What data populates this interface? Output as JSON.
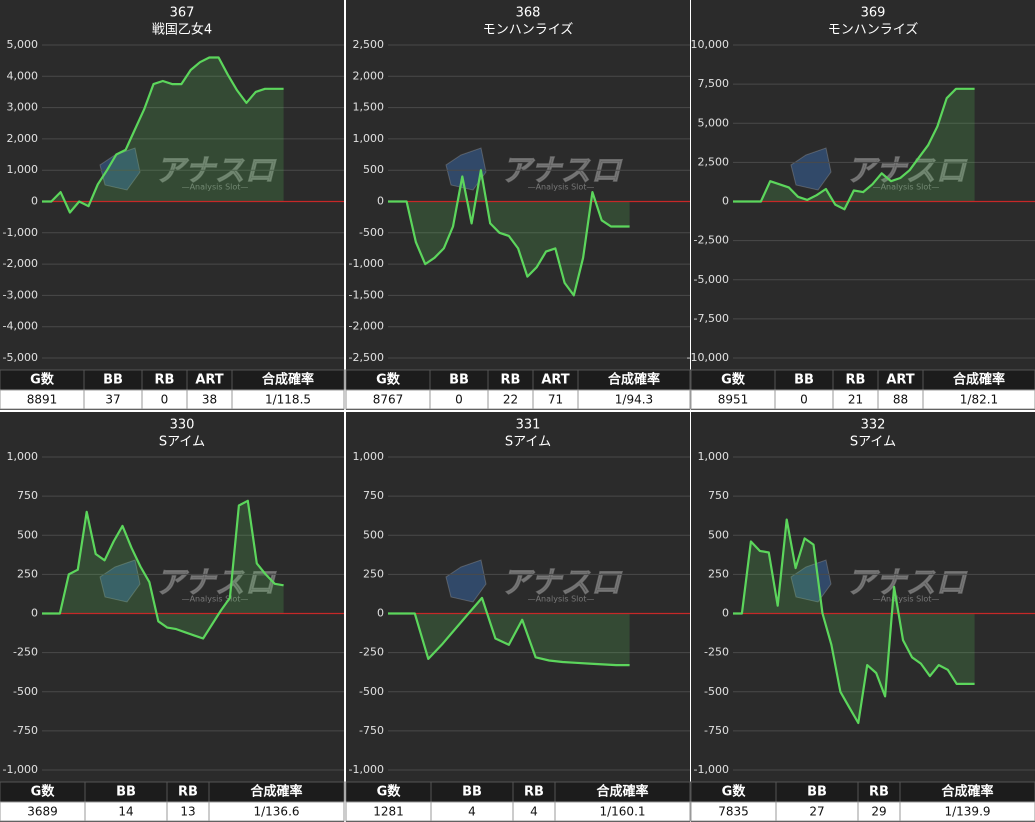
{
  "watermark": {
    "title": "アナスロ",
    "subtitle": "—Analysis Slot—"
  },
  "chart_data": [
    {
      "type": "line",
      "title": "367",
      "subtitle": "戦国乙女4",
      "color": "#5cd65c",
      "fill": true,
      "zero_line": "#c62828",
      "ylim": [
        -5000,
        5000
      ],
      "yticks": [
        {
          "value": -5000,
          "label": "-5,000"
        },
        {
          "value": -4000,
          "label": "-4,000"
        },
        {
          "value": -3000,
          "label": "-3,000"
        },
        {
          "value": -2000,
          "label": "-2,000"
        },
        {
          "value": -1000,
          "label": "-1,000"
        },
        0,
        {
          "value": 1000,
          "label": "1,000"
        },
        {
          "value": 2000,
          "label": "2,000"
        },
        {
          "value": 3000,
          "label": "3,000"
        },
        {
          "value": 4000,
          "label": "4,000"
        },
        {
          "value": 5000,
          "label": "5,000"
        }
      ],
      "values": [
        0,
        0,
        300,
        -350,
        0,
        -150,
        550,
        1000,
        1500,
        1650,
        2300,
        2950,
        3750,
        3850,
        3750,
        3750,
        4200,
        4450,
        4600,
        4600,
        4050,
        3550,
        3150,
        3500,
        3600,
        3600,
        3600
      ]
    },
    {
      "type": "line",
      "title": "368",
      "subtitle": "モンハンライズ",
      "color": "#5cd65c",
      "fill": true,
      "zero_line": "#c62828",
      "ylim": [
        -2500,
        2500
      ],
      "yticks": [
        {
          "value": -2500,
          "label": "-2,500"
        },
        {
          "value": -2000,
          "label": "-2,000"
        },
        {
          "value": -1500,
          "label": "-1,500"
        },
        {
          "value": -1000,
          "label": "-1,000"
        },
        -500,
        0,
        500,
        {
          "value": 1000,
          "label": "1,000"
        },
        {
          "value": 1500,
          "label": "1,500"
        },
        {
          "value": 2000,
          "label": "2,000"
        },
        {
          "value": 2500,
          "label": "2,500"
        }
      ],
      "values": [
        0,
        0,
        0,
        -650,
        -1000,
        -900,
        -750,
        -400,
        400,
        -350,
        500,
        -350,
        -500,
        -550,
        -750,
        -1200,
        -1050,
        -800,
        -750,
        -1300,
        -1500,
        -900,
        150,
        -300,
        -400,
        -400,
        -400
      ]
    },
    {
      "type": "line",
      "title": "369",
      "subtitle": "モンハンライズ",
      "color": "#5cd65c",
      "fill": true,
      "zero_line": "#c62828",
      "ylim": [
        -10000,
        10000
      ],
      "yticks": [
        {
          "value": -10000,
          "label": "-10,000"
        },
        {
          "value": -7500,
          "label": "-7,500"
        },
        {
          "value": -5000,
          "label": "-5,000"
        },
        {
          "value": -2500,
          "label": "-2,500"
        },
        0,
        {
          "value": 2500,
          "label": "2,500"
        },
        {
          "value": 5000,
          "label": "5,000"
        },
        {
          "value": 7500,
          "label": "7,500"
        },
        {
          "value": 10000,
          "label": "10,000"
        }
      ],
      "values": [
        0,
        0,
        0,
        0,
        1300,
        1100,
        900,
        300,
        100,
        400,
        800,
        -200,
        -500,
        700,
        600,
        1100,
        1800,
        1300,
        1500,
        2000,
        2800,
        3600,
        4800,
        6600,
        7200,
        7200,
        7200
      ]
    },
    {
      "type": "line",
      "title": "330",
      "subtitle": "Sアイム",
      "color": "#5cd65c",
      "fill": true,
      "zero_line": "#c62828",
      "ylim": [
        -1000,
        1000
      ],
      "yticks": [
        {
          "value": -1000,
          "label": "-1,000"
        },
        -750,
        -500,
        -250,
        0,
        250,
        500,
        750,
        {
          "value": 1000,
          "label": "1,000"
        }
      ],
      "values": [
        0,
        0,
        0,
        250,
        280,
        650,
        380,
        340,
        460,
        560,
        420,
        300,
        200,
        -50,
        -90,
        -100,
        -120,
        -140,
        -160,
        -70,
        20,
        100,
        690,
        720,
        320,
        250,
        190,
        180
      ]
    },
    {
      "type": "line",
      "title": "331",
      "subtitle": "Sアイム",
      "color": "#5cd65c",
      "fill": true,
      "zero_line": "#c62828",
      "ylim": [
        -1000,
        1000
      ],
      "yticks": [
        {
          "value": -1000,
          "label": "-1,000"
        },
        -750,
        -500,
        -250,
        0,
        250,
        500,
        750,
        {
          "value": 1000,
          "label": "1,000"
        }
      ],
      "values": [
        0,
        0,
        0,
        -290,
        -200,
        -100,
        0,
        100,
        -160,
        -200,
        -40,
        -280,
        -300,
        -310,
        -315,
        -320,
        -325,
        -330,
        -330
      ]
    },
    {
      "type": "line",
      "title": "332",
      "subtitle": "Sアイム",
      "color": "#5cd65c",
      "fill": true,
      "zero_line": "#c62828",
      "ylim": [
        -1000,
        1000
      ],
      "yticks": [
        {
          "value": -1000,
          "label": "-1,000"
        },
        -750,
        -500,
        -250,
        0,
        250,
        500,
        750,
        {
          "value": 1000,
          "label": "1,000"
        }
      ],
      "values": [
        0,
        0,
        460,
        400,
        390,
        50,
        600,
        290,
        480,
        440,
        0,
        -200,
        -500,
        -600,
        -700,
        -330,
        -380,
        -530,
        170,
        -170,
        -280,
        -320,
        -400,
        -330,
        -360,
        -450,
        -450,
        -450
      ]
    }
  ],
  "tables": [
    {
      "header": [
        "G数",
        "BB",
        "RB",
        "ART",
        "合成確率"
      ],
      "row": [
        "8891",
        "37",
        "0",
        "38",
        "1/118.5"
      ]
    },
    {
      "header": [
        "G数",
        "BB",
        "RB",
        "ART",
        "合成確率"
      ],
      "row": [
        "8767",
        "0",
        "22",
        "71",
        "1/94.3"
      ]
    },
    {
      "header": [
        "G数",
        "BB",
        "RB",
        "ART",
        "合成確率"
      ],
      "row": [
        "8951",
        "0",
        "21",
        "88",
        "1/82.1"
      ]
    },
    {
      "header": [
        "G数",
        "BB",
        "RB",
        "合成確率"
      ],
      "row": [
        "3689",
        "14",
        "13",
        "1/136.6"
      ]
    },
    {
      "header": [
        "G数",
        "BB",
        "RB",
        "合成確率"
      ],
      "row": [
        "1281",
        "4",
        "4",
        "1/160.1"
      ]
    },
    {
      "header": [
        "G数",
        "BB",
        "RB",
        "合成確率"
      ],
      "row": [
        "7835",
        "27",
        "29",
        "1/139.9"
      ]
    }
  ]
}
